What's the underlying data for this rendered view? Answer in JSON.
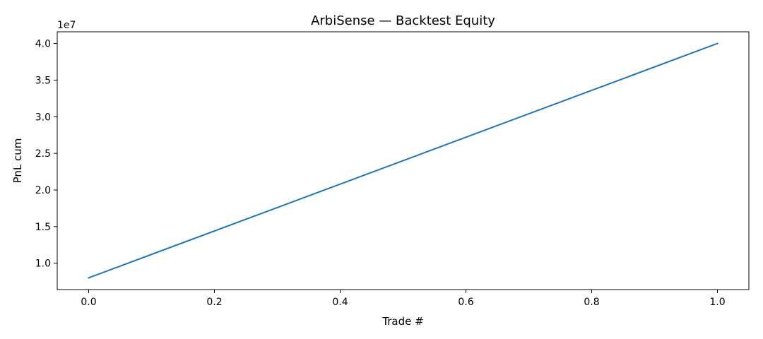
{
  "chart_data": {
    "type": "line",
    "title": "ArbiSense — Backtest Equity",
    "xlabel": "Trade #",
    "ylabel": "PnL cum",
    "y_offset_label": "1e7",
    "xlim": [
      -0.05,
      1.05
    ],
    "ylim": [
      6400000,
      41600000
    ],
    "x_ticks": [
      0.0,
      0.2,
      0.4,
      0.6,
      0.8,
      1.0
    ],
    "x_tick_labels": [
      "0.0",
      "0.2",
      "0.4",
      "0.6",
      "0.8",
      "1.0"
    ],
    "y_ticks": [
      10000000,
      15000000,
      20000000,
      25000000,
      30000000,
      35000000,
      40000000
    ],
    "y_tick_labels": [
      "1.0",
      "1.5",
      "2.0",
      "2.5",
      "3.0",
      "3.5",
      "4.0"
    ],
    "grid": false,
    "series": [
      {
        "color": "#1f77b4",
        "x": [
          0,
          1
        ],
        "y": [
          8000000,
          40000000
        ]
      }
    ]
  }
}
